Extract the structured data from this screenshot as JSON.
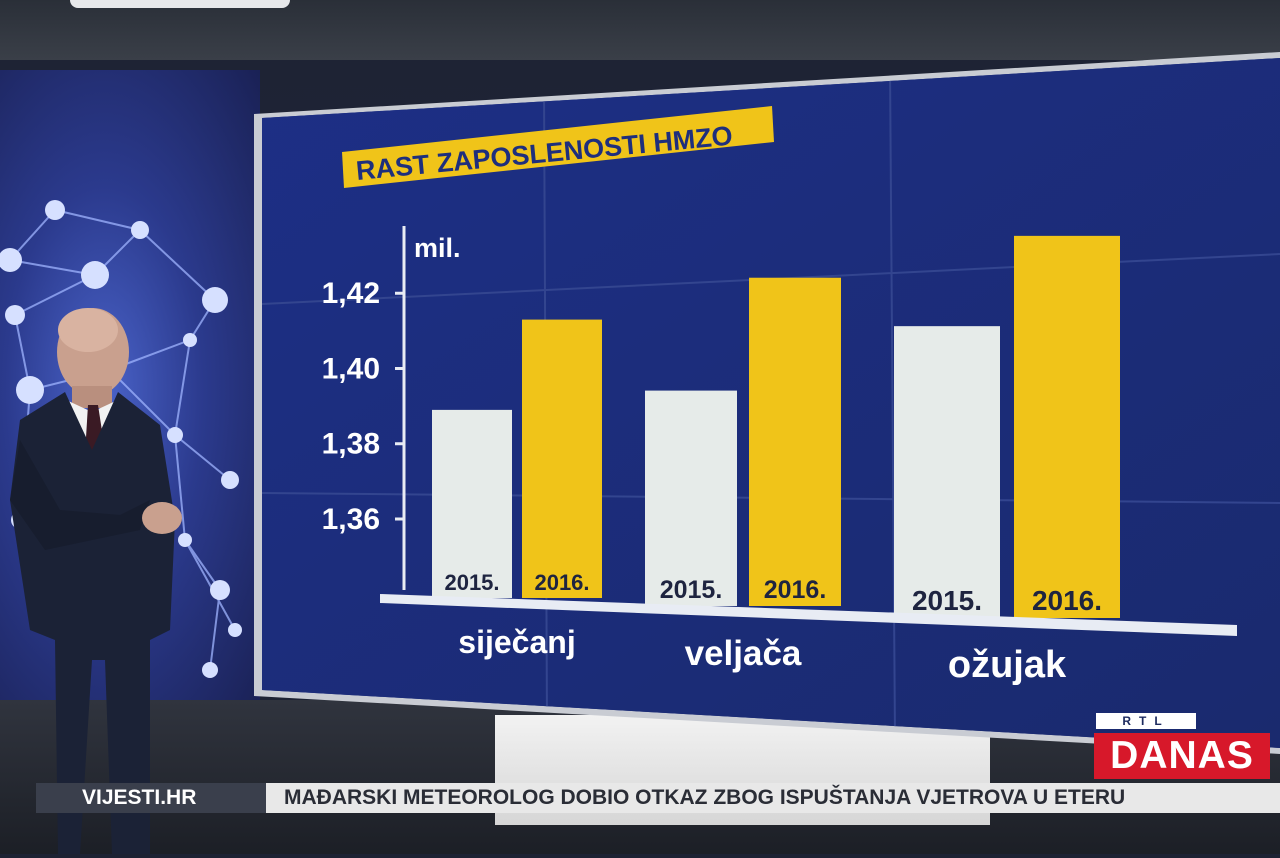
{
  "chart_data": {
    "type": "bar",
    "title": "RAST ZAPOSLENOSTI HMZO",
    "unit": "mil.",
    "categories": [
      "siječanj",
      "veljača",
      "ožujak"
    ],
    "series": [
      {
        "name": "2015.",
        "values": [
          1.389,
          1.392,
          1.407
        ]
      },
      {
        "name": "2016.",
        "values": [
          1.413,
          1.422,
          1.431
        ]
      }
    ],
    "y_ticks": [
      "1,36",
      "1,38",
      "1,40",
      "1,42"
    ],
    "y_tick_values": [
      1.36,
      1.38,
      1.4,
      1.42
    ],
    "ylim": [
      1.339,
      1.44
    ],
    "colors": {
      "2015.": "#e6ebe9",
      "2016.": "#f0c419"
    }
  },
  "ticker": {
    "source": "VIJESTI.HR",
    "headline": "MAĐARSKI METEOROLOG DOBIO OTKAZ ZBOG ISPUŠTANJA VJETROVA U ETERU"
  },
  "logo": {
    "top": "RTL",
    "main": "DANAS"
  }
}
